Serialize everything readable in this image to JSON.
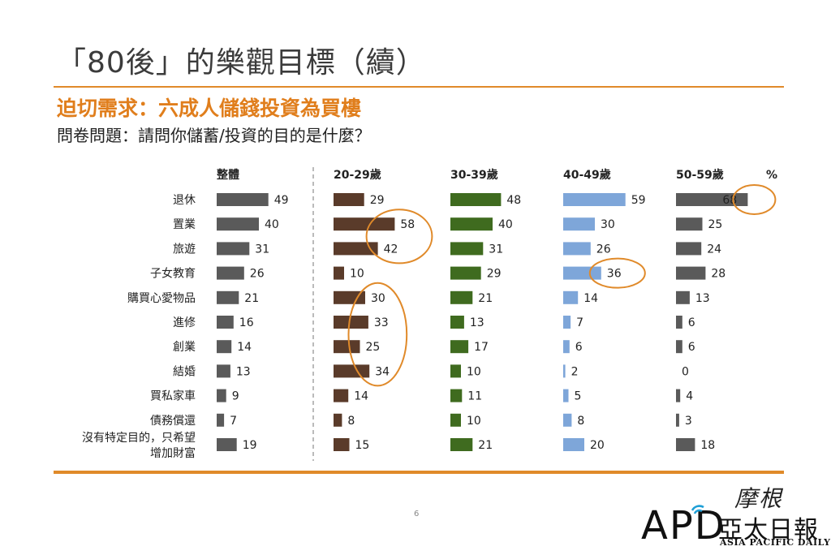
{
  "page": {
    "title": "「80後」的樂觀目標（續）",
    "subtitle": "迫切需求：六成人儲錢投資為買樓",
    "question": "問卷問題：請問你儲蓄/投資的目的是什麼？",
    "page_number": "6"
  },
  "logo": {
    "apd": "APD",
    "brush": "摩根",
    "chinese": "亞太日報",
    "english": "ASIA PACIFIC DAILY"
  },
  "colors": {
    "accent": "#e08a2a",
    "overall": "#5a5a5a",
    "age_20_29": "#5a3b2a",
    "age_30_39": "#3f6b1f",
    "age_40_49": "#7ea6d9",
    "age_50_59": "#5a5a5a",
    "highlight": "#e08a2a"
  },
  "chart_data": {
    "type": "bar",
    "orientation": "horizontal",
    "unit": "%",
    "categories": [
      "退休",
      "置業",
      "旅遊",
      "子女教育",
      "購買心愛物品",
      "進修",
      "創業",
      "結婚",
      "買私家車",
      "債務償還",
      "沒有特定目的，只希望增加財富"
    ],
    "category_lines": [
      [
        "退休"
      ],
      [
        "置業"
      ],
      [
        "旅遊"
      ],
      [
        "子女教育"
      ],
      [
        "購買心愛物品"
      ],
      [
        "進修"
      ],
      [
        "創業"
      ],
      [
        "結婚"
      ],
      [
        "買私家車"
      ],
      [
        "債務償還"
      ],
      [
        "沒有特定目的，只希望",
        "增加財富"
      ]
    ],
    "series": [
      {
        "name": "整體",
        "key": "overall",
        "values": [
          49,
          40,
          31,
          26,
          21,
          16,
          14,
          13,
          9,
          7,
          19
        ]
      },
      {
        "name": "20-29歲",
        "key": "age_20_29",
        "values": [
          29,
          58,
          42,
          10,
          30,
          33,
          25,
          34,
          14,
          8,
          15
        ]
      },
      {
        "name": "30-39歲",
        "key": "age_30_39",
        "values": [
          48,
          40,
          31,
          29,
          21,
          13,
          17,
          10,
          11,
          10,
          21
        ]
      },
      {
        "name": "40-49歲",
        "key": "age_40_49",
        "values": [
          59,
          30,
          26,
          36,
          14,
          7,
          6,
          2,
          5,
          8,
          20
        ]
      },
      {
        "name": "50-59歲",
        "key": "age_50_59",
        "values": [
          68,
          25,
          24,
          28,
          13,
          6,
          6,
          0,
          4,
          3,
          18
        ]
      }
    ],
    "highlights": [
      {
        "series": 1,
        "from": 1,
        "to": 2
      },
      {
        "series": 1,
        "from": 4,
        "to": 7
      },
      {
        "series": 3,
        "from": 3,
        "to": 3
      },
      {
        "series": 4,
        "from": 0,
        "to": 0
      }
    ],
    "grid": false,
    "legend": "top"
  }
}
